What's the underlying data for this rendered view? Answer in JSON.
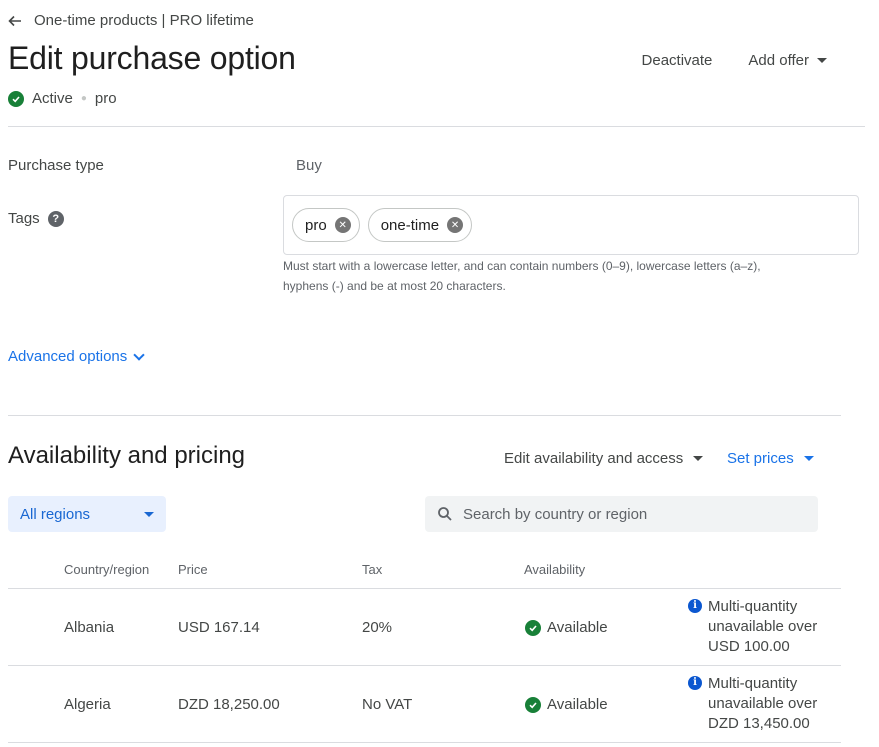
{
  "header": {
    "breadcrumb": "One-time products | PRO lifetime",
    "title": "Edit purchase option",
    "status": "Active",
    "option_id": "pro",
    "actions": {
      "deactivate": "Deactivate",
      "add_offer": "Add offer"
    }
  },
  "form": {
    "purchase_type_label": "Purchase type",
    "purchase_type_value": "Buy",
    "tags_label": "Tags",
    "help_icon": "?",
    "tags": [
      "pro",
      "one-time"
    ],
    "tags_helper_line1": "Must start with a lowercase letter, and can contain numbers (0–9), lowercase letters (a–z),",
    "tags_helper_line2": "hyphens (-) and be at most 20 characters.",
    "advanced_options": "Advanced options"
  },
  "availability": {
    "title": "Availability and pricing",
    "edit_availability": "Edit availability and access",
    "set_prices": "Set prices",
    "region_filter": "All regions",
    "search_placeholder": "Search by country or region",
    "columns": [
      "Country/region",
      "Price",
      "Tax",
      "Availability"
    ],
    "rows": [
      {
        "country": "Albania",
        "price": "USD 167.14",
        "tax": "20%",
        "availability": "Available",
        "note_line1": "Multi-quantity",
        "note_line2": "unavailable over",
        "note_line3": "USD 100.00"
      },
      {
        "country": "Algeria",
        "price": "DZD 18,250.00",
        "tax": "No VAT",
        "availability": "Available",
        "note_line1": "Multi-quantity",
        "note_line2": "unavailable over",
        "note_line3": "DZD 13,450.00"
      }
    ]
  },
  "colors": {
    "accent": "#1a73e8",
    "success": "#188038",
    "info": "#0b57d0"
  }
}
